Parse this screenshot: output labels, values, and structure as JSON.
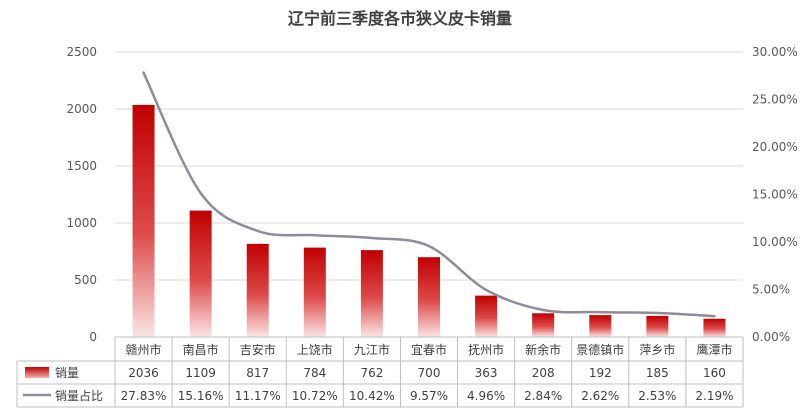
{
  "chart_data": {
    "type": "bar",
    "title": "辽宁前三季度各市狭义皮卡销量",
    "categories": [
      "赣州市",
      "南昌市",
      "吉安市",
      "上饶市",
      "九江市",
      "宜春市",
      "抚州市",
      "新余市",
      "景德镇市",
      "萍乡市",
      "鹰潭市"
    ],
    "series": [
      {
        "name": "销量",
        "type": "bar",
        "axis": "left",
        "values": [
          2036,
          1109,
          817,
          784,
          762,
          700,
          363,
          208,
          192,
          185,
          160
        ],
        "labels": [
          "2036",
          "1109",
          "817",
          "784",
          "762",
          "700",
          "363",
          "208",
          "192",
          "185",
          "160"
        ]
      },
      {
        "name": "销量占比",
        "type": "line",
        "axis": "right",
        "values": [
          27.83,
          15.16,
          11.17,
          10.72,
          10.42,
          9.57,
          4.96,
          2.84,
          2.62,
          2.53,
          2.19
        ],
        "labels": [
          "27.83%",
          "15.16%",
          "11.17%",
          "10.72%",
          "10.42%",
          "9.57%",
          "4.96%",
          "2.84%",
          "2.62%",
          "2.53%",
          "2.19%"
        ]
      }
    ],
    "y_left": {
      "ylim": [
        0,
        2500
      ],
      "ticks": [
        "0",
        "500",
        "1000",
        "1500",
        "2000",
        "2500"
      ]
    },
    "y_right": {
      "ylim": [
        0,
        30
      ],
      "ticks": [
        "0.00%",
        "5.00%",
        "10.00%",
        "15.00%",
        "20.00%",
        "25.00%",
        "30.00%"
      ]
    },
    "grid": true,
    "legend": "data-table",
    "colors": {
      "bar_top": "#c00000",
      "bar_bottom": "#fbe5e5",
      "line": "#8c8c9a",
      "grid": "#d9d9d9",
      "table_border": "#bfbfbf"
    }
  }
}
